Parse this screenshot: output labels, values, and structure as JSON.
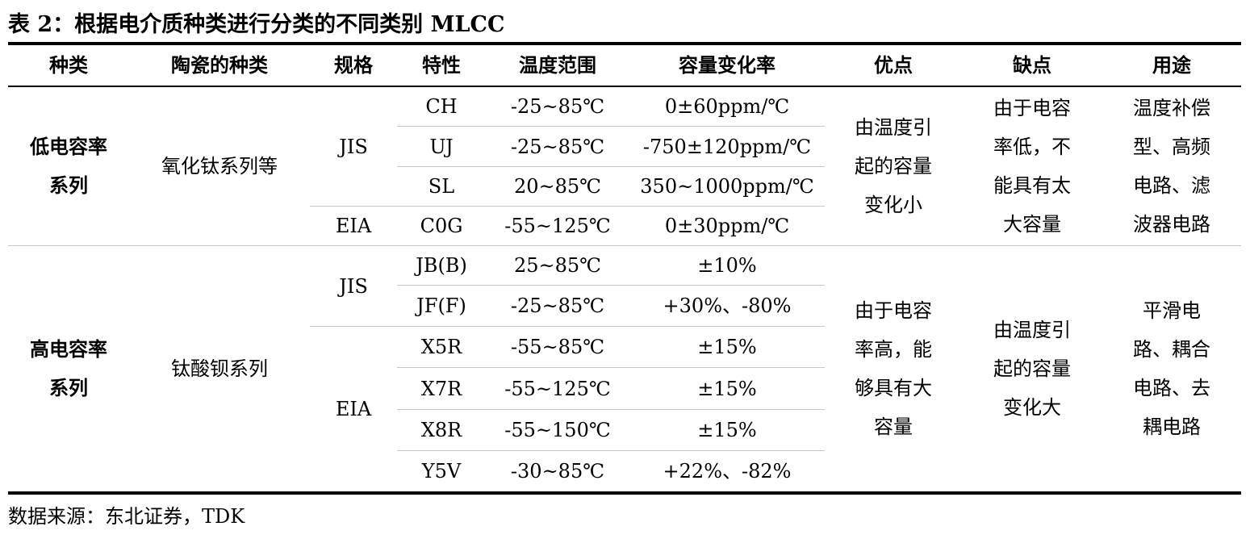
{
  "title": "表 2：根据电介质种类进行分类的不同类别 MLCC",
  "headers": [
    "种类",
    "陶瓷的种类",
    "规格",
    "特性",
    "温度范围",
    "容量变化率",
    "优点",
    "缺点",
    "用途"
  ],
  "groups": [
    {
      "type_lines": [
        "低电容率",
        "系列"
      ],
      "ceramic": "氧化钛系列等",
      "specs": [
        "JIS",
        "EIA"
      ],
      "rows": [
        {
          "char": "CH",
          "temp": "-25~85℃",
          "cap": "0±60ppm/℃"
        },
        {
          "char": "UJ",
          "temp": "-25~85℃",
          "cap": "-750±120ppm/℃"
        },
        {
          "char": "SL",
          "temp": "20~85℃",
          "cap": "350~1000ppm/℃"
        },
        {
          "char": "C0G",
          "temp": "-55~125℃",
          "cap": "0±30ppm/℃"
        }
      ],
      "pros_lines": [
        "由温度引",
        "起的容量",
        "变化小"
      ],
      "cons_lines": [
        "由于电容",
        "率低，不",
        "能具有太",
        "大容量"
      ],
      "use_lines": [
        "温度补偿",
        "型、高频",
        "电路、滤",
        "波器电路"
      ]
    },
    {
      "type_lines": [
        "高电容率",
        "系列"
      ],
      "ceramic": "钛酸钡系列",
      "specs": [
        "JIS",
        "EIA"
      ],
      "rows": [
        {
          "char": "JB(B)",
          "temp": "25~85℃",
          "cap": "±10%"
        },
        {
          "char": "JF(F)",
          "temp": "-25~85℃",
          "cap": "+30%、-80%"
        },
        {
          "char": "X5R",
          "temp": "-55~85℃",
          "cap": "±15%"
        },
        {
          "char": "X7R",
          "temp": "-55~125℃",
          "cap": "±15%"
        },
        {
          "char": "X8R",
          "temp": "-55~150℃",
          "cap": "±15%"
        },
        {
          "char": "Y5V",
          "temp": "-30~85℃",
          "cap": "+22%、-82%"
        }
      ],
      "pros_lines": [
        "由于电容",
        "率高，能",
        "够具有大",
        "容量"
      ],
      "cons_lines": [
        "由温度引",
        "起的容量",
        "变化大"
      ],
      "use_lines": [
        "平滑电",
        "路、耦合",
        "电路、去",
        "耦电路"
      ]
    }
  ],
  "source": "数据来源：东北证券，TDK"
}
